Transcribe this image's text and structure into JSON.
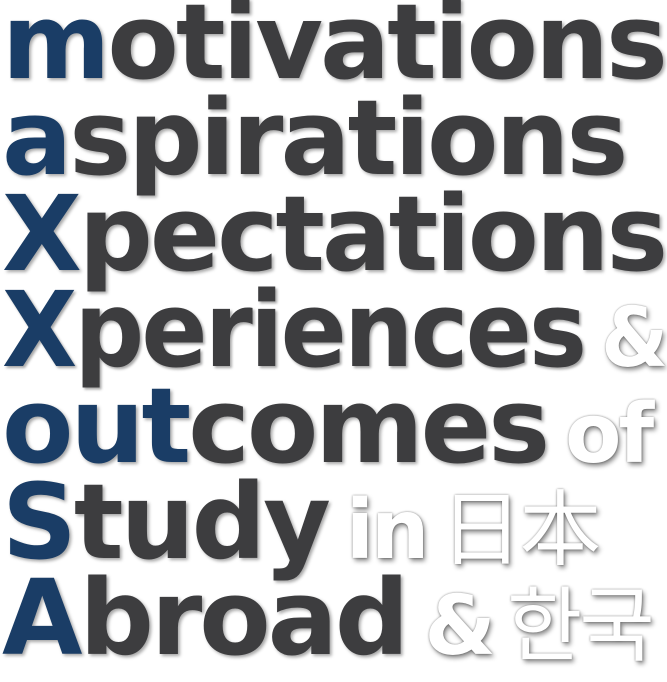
{
  "lines": [
    {
      "lead": "m",
      "rest": "otivations"
    },
    {
      "lead": "a",
      "rest": "spirations"
    },
    {
      "lead": "X",
      "rest": "pectations"
    },
    {
      "lead": "X",
      "rest": "periences",
      "extra": "&"
    },
    {
      "lead": "out",
      "rest": "comes",
      "extra": "of"
    },
    {
      "lead": "S",
      "rest": "tudy",
      "extra": "in",
      "extra2": "日本"
    },
    {
      "lead": "A",
      "rest": "broad",
      "extra": "&",
      "extra2": "한국"
    }
  ],
  "colors": {
    "lead": "#1a3d66",
    "rest": "#3d3d3f",
    "extra": "#ffffff"
  }
}
